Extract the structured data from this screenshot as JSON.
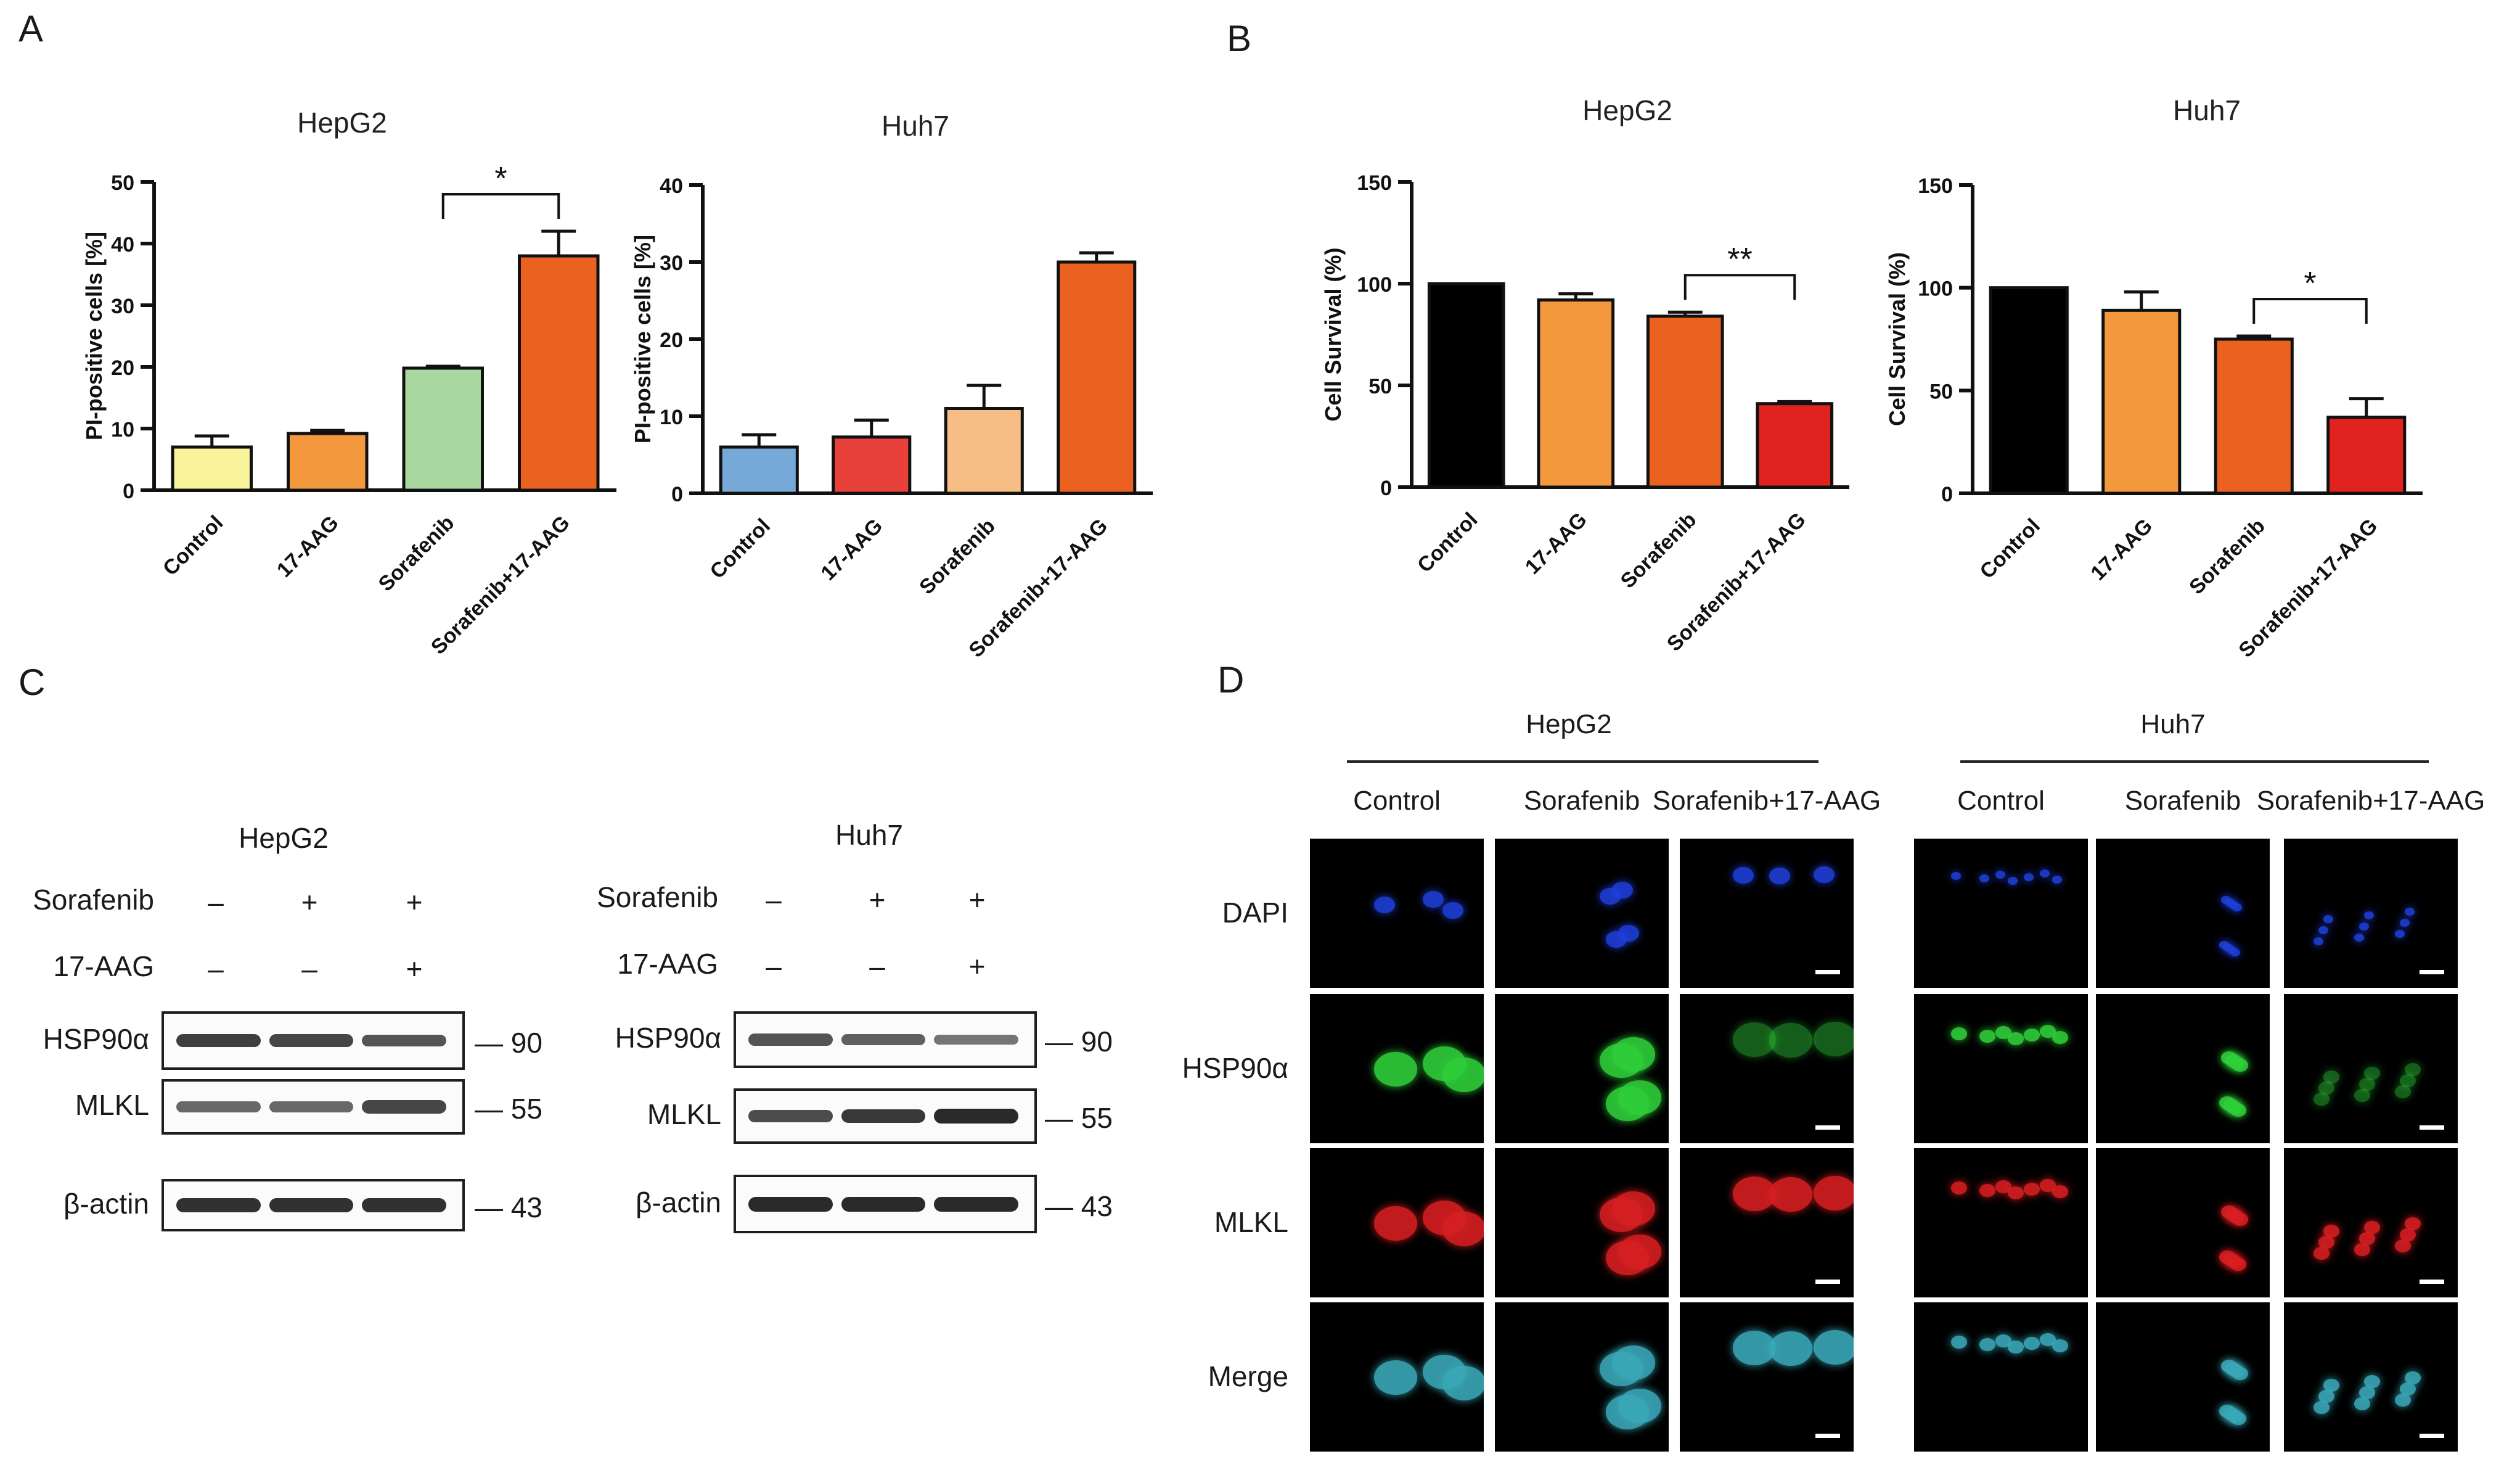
{
  "figure": {
    "panels": [
      "A",
      "B",
      "C",
      "D"
    ]
  },
  "chart_data": [
    {
      "type": "bar",
      "title": "HepG2",
      "ylabel": "PI-positive cells [%]",
      "xlabel": "",
      "categories": [
        "Control",
        "17-AAG",
        "Sorafenib",
        "Sorafenib+17-AAG"
      ],
      "values": [
        7,
        9.2,
        19.8,
        38
      ],
      "errors": [
        1.8,
        0.5,
        0.3,
        4
      ],
      "colors": [
        "#f9f39c",
        "#f3983d",
        "#a8d8a0",
        "#ea6120"
      ],
      "ylim": [
        0,
        50
      ],
      "yticks": [
        0,
        10,
        20,
        30,
        40,
        50
      ],
      "significance": [
        {
          "from": 2,
          "to": 3,
          "label": "*"
        }
      ]
    },
    {
      "type": "bar",
      "title": "Huh7",
      "ylabel": "PI-positive cells [%]",
      "xlabel": "",
      "categories": [
        "Control",
        "17-AAG",
        "Sorafenib",
        "Sorafenib+17-AAG"
      ],
      "values": [
        6,
        7.3,
        11,
        30
      ],
      "errors": [
        1.6,
        2.2,
        3,
        1.2
      ],
      "colors": [
        "#77a9d8",
        "#e8403b",
        "#f6bd85",
        "#ea6120"
      ],
      "ylim": [
        0,
        40
      ],
      "yticks": [
        0,
        10,
        20,
        30,
        40
      ],
      "significance": []
    },
    {
      "type": "bar",
      "title": "HepG2",
      "ylabel": "Cell Survival (%)",
      "xlabel": "",
      "categories": [
        "Control",
        "17-AAG",
        "Sorafenib",
        "Sorafenib+17-AAG"
      ],
      "values": [
        100,
        92,
        84,
        41
      ],
      "errors": [
        0,
        3,
        2,
        1
      ],
      "colors": [
        "#000000",
        "#f3983d",
        "#ea6120",
        "#e0231f"
      ],
      "ylim": [
        0,
        150
      ],
      "yticks": [
        0,
        50,
        100,
        150
      ],
      "significance": [
        {
          "from": 2,
          "to": 3,
          "label": "**"
        }
      ]
    },
    {
      "type": "bar",
      "title": "Huh7",
      "ylabel": "Cell Survival (%)",
      "xlabel": "",
      "categories": [
        "Control",
        "17-AAG",
        "Sorafenib",
        "Sorafenib+17-AAG"
      ],
      "values": [
        100,
        89,
        75,
        37
      ],
      "errors": [
        0,
        9,
        1.5,
        9
      ],
      "colors": [
        "#000000",
        "#f3983d",
        "#ea6120",
        "#e0231f"
      ],
      "ylim": [
        0,
        150
      ],
      "yticks": [
        0,
        50,
        100,
        150
      ],
      "significance": [
        {
          "from": 2,
          "to": 3,
          "label": "*"
        }
      ]
    }
  ],
  "western": [
    {
      "cell_line": "HepG2",
      "treatments": [
        {
          "label": "Sorafenib",
          "signs": [
            "–",
            "+",
            "+"
          ]
        },
        {
          "label": "17-AAG",
          "signs": [
            "–",
            "–",
            "+"
          ]
        }
      ],
      "rows": [
        {
          "label": "HSP90α",
          "mw": "90",
          "intensity": [
            0.85,
            0.8,
            0.7
          ]
        },
        {
          "label": "MLKL",
          "mw": "55",
          "intensity": [
            0.55,
            0.55,
            0.8
          ]
        },
        {
          "label": "β-actin",
          "mw": "43",
          "intensity": [
            0.95,
            0.95,
            0.95
          ]
        }
      ]
    },
    {
      "cell_line": "Huh7",
      "treatments": [
        {
          "label": "Sorafenib",
          "signs": [
            "–",
            "+",
            "+"
          ]
        },
        {
          "label": "17-AAG",
          "signs": [
            "–",
            "–",
            "+"
          ]
        }
      ],
      "rows": [
        {
          "label": "HSP90α",
          "mw": "90",
          "intensity": [
            0.7,
            0.6,
            0.45
          ]
        },
        {
          "label": "MLKL",
          "mw": "55",
          "intensity": [
            0.75,
            0.9,
            1.0
          ]
        },
        {
          "label": "β-actin",
          "mw": "43",
          "intensity": [
            1.0,
            1.0,
            1.0
          ]
        }
      ]
    }
  ],
  "immunofluorescence": {
    "groups": [
      {
        "cell_line": "HepG2",
        "columns": [
          "Control",
          "Sorafenib",
          "Sorafenib+17-AAG"
        ]
      },
      {
        "cell_line": "Huh7",
        "columns": [
          "Control",
          "Sorafenib",
          "Sorafenib+17-AAG"
        ]
      }
    ],
    "rows": [
      {
        "label": "DAPI",
        "color": "#1f3fd8"
      },
      {
        "label": "HSP90α",
        "color": "#2fcf3a"
      },
      {
        "label": "MLKL",
        "color": "#d81f22"
      },
      {
        "label": "Merge",
        "color": "#3aa8b8"
      }
    ]
  }
}
